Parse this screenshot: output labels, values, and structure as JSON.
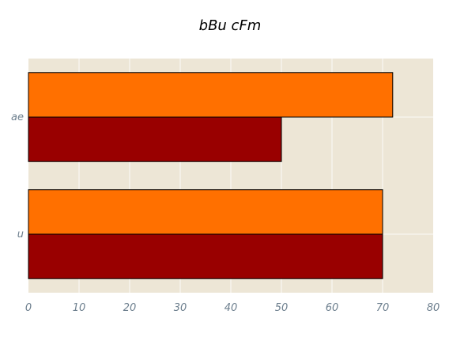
{
  "chart_data": {
    "type": "bar",
    "orientation": "horizontal",
    "title": "bBu cFm",
    "xlabel": "",
    "ylabel": "",
    "categories": [
      "u",
      "ae"
    ],
    "series": [
      {
        "values": [
          70,
          50
        ],
        "color": "#990000"
      },
      {
        "values": [
          70,
          72
        ],
        "color": "#ff7000"
      }
    ],
    "xlim": [
      0,
      80
    ],
    "x_ticks": [
      0,
      10,
      20,
      30,
      40,
      50,
      60,
      70,
      80
    ],
    "grid": true,
    "background_color": "#ede6d6",
    "legend": "none"
  }
}
